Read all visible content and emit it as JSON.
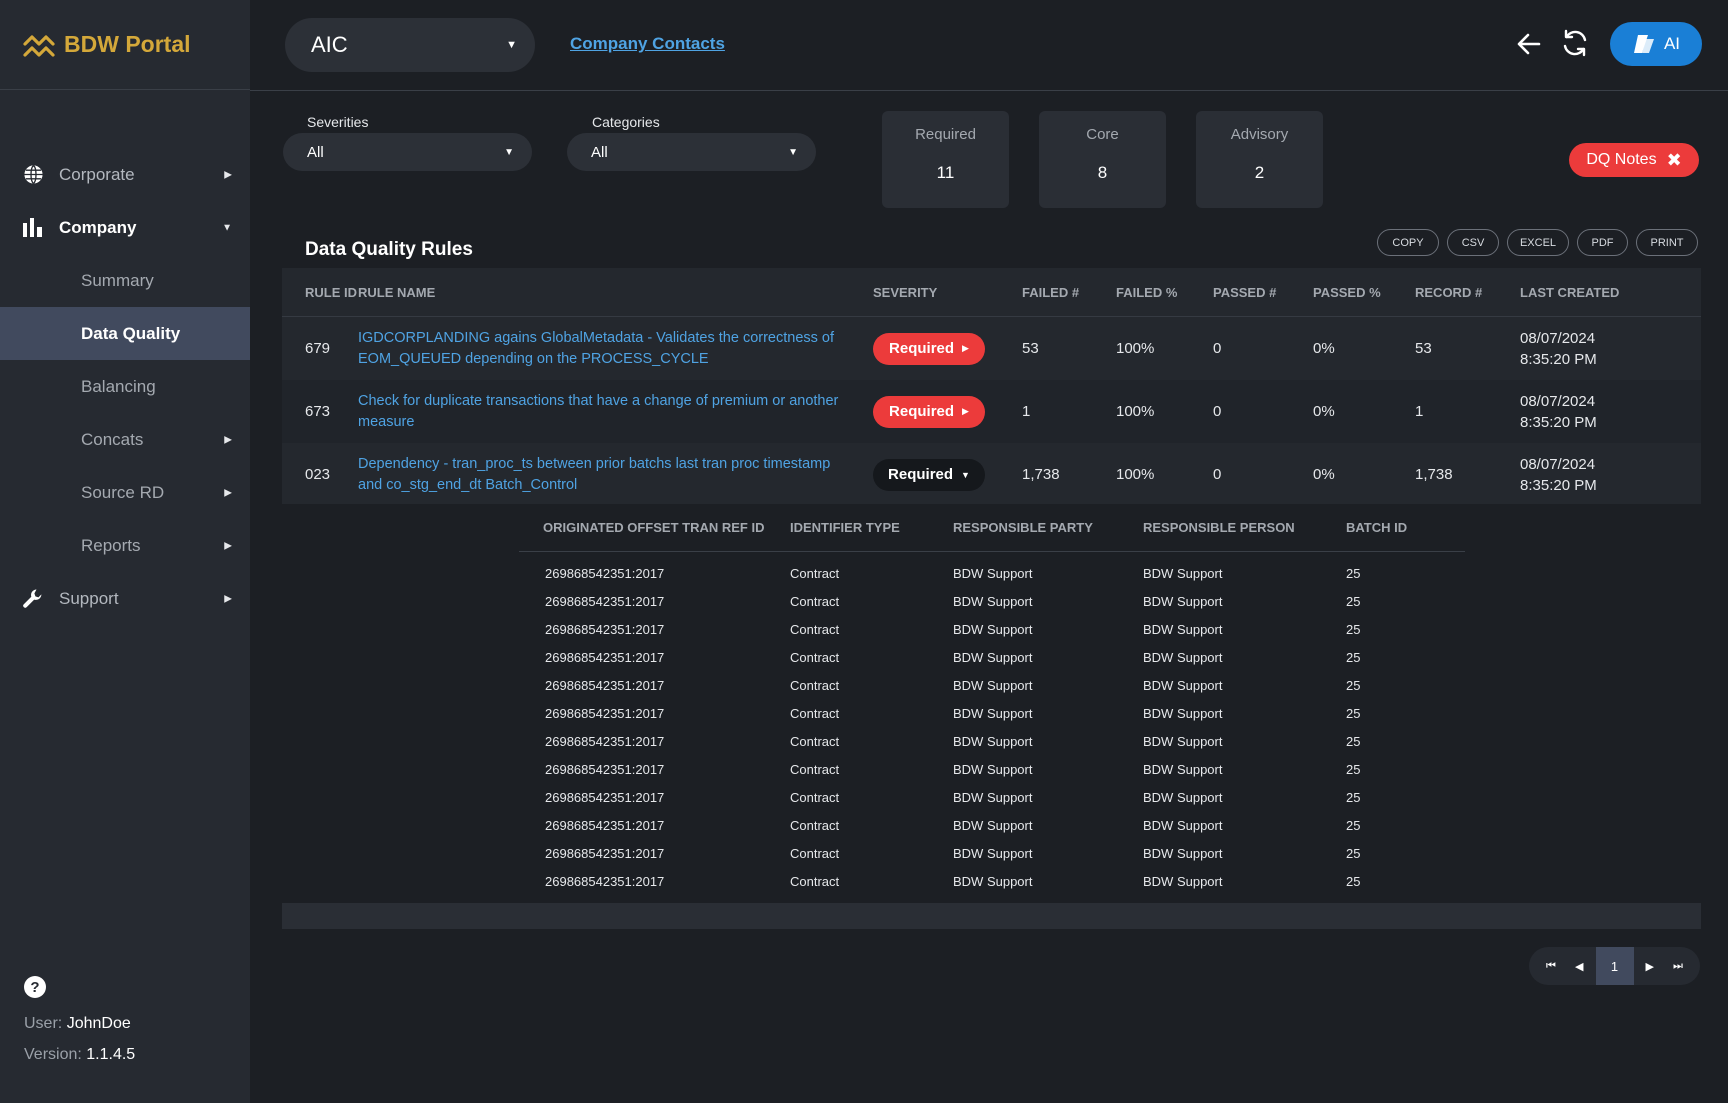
{
  "app": {
    "title": "BDW Portal"
  },
  "sidebar": {
    "items": [
      {
        "label": "Corporate"
      },
      {
        "label": "Company"
      },
      {
        "label": "Support"
      }
    ],
    "company_sub": [
      {
        "label": "Summary"
      },
      {
        "label": "Data Quality"
      },
      {
        "label": "Balancing"
      },
      {
        "label": "Concats"
      },
      {
        "label": "Source RD"
      },
      {
        "label": "Reports"
      }
    ],
    "footer": {
      "user_label": "User:",
      "user": "JohnDoe",
      "version_label": "Version:",
      "version": "1.1.4.5",
      "help_glyph": "?"
    }
  },
  "header": {
    "company_select": "AIC",
    "company_link": "Company Contacts",
    "ai_label": "AI"
  },
  "filters": {
    "severities_label": "Severities",
    "severities_value": "All",
    "categories_label": "Categories",
    "categories_value": "All"
  },
  "stats": [
    {
      "label": "Required",
      "value": "11"
    },
    {
      "label": "Core",
      "value": "8"
    },
    {
      "label": "Advisory",
      "value": "2"
    }
  ],
  "dq_notes": {
    "label": "DQ Notes"
  },
  "table": {
    "title": "Data Quality Rules",
    "exports": [
      "COPY",
      "CSV",
      "EXCEL",
      "PDF",
      "PRINT"
    ],
    "columns": [
      "RULE ID",
      "RULE NAME",
      "SEVERITY",
      "FAILED #",
      "FAILED %",
      "PASSED #",
      "PASSED %",
      "RECORD #",
      "LAST CREATED"
    ],
    "rows": [
      {
        "id": "679",
        "name": "IGDCORPLANDING agains GlobalMetadata - Validates the correctness of EOM_QUEUED depending on the PROCESS_CYCLE",
        "severity": "Required",
        "failed_n": "53",
        "failed_p": "100%",
        "passed_n": "0",
        "passed_p": "0%",
        "record_n": "53",
        "created_date": "08/07/2024",
        "created_time": "8:35:20 PM"
      },
      {
        "id": "673",
        "name": "Check for duplicate transactions that have a change of premium or another measure",
        "severity": "Required",
        "failed_n": "1",
        "failed_p": "100%",
        "passed_n": "0",
        "passed_p": "0%",
        "record_n": "1",
        "created_date": "08/07/2024",
        "created_time": "8:35:20 PM"
      },
      {
        "id": "023",
        "name": "Dependency - tran_proc_ts between prior batchs last tran proc timestamp and co_stg_end_dt Batch_Control",
        "severity": "Required",
        "failed_n": "1,738",
        "failed_p": "100%",
        "passed_n": "0",
        "passed_p": "0%",
        "record_n": "1,738",
        "created_date": "08/07/2024",
        "created_time": "8:35:20 PM"
      }
    ]
  },
  "detail": {
    "columns": [
      "ORIGINATED OFFSET TRAN REF ID",
      "IDENTIFIER TYPE",
      "RESPONSIBLE PARTY",
      "RESPONSIBLE PERSON",
      "BATCH ID"
    ],
    "rows": [
      [
        "269868542351:2017",
        "Contract",
        "BDW Support",
        "BDW Support",
        "25"
      ],
      [
        "269868542351:2017",
        "Contract",
        "BDW Support",
        "BDW Support",
        "25"
      ],
      [
        "269868542351:2017",
        "Contract",
        "BDW Support",
        "BDW Support",
        "25"
      ],
      [
        "269868542351:2017",
        "Contract",
        "BDW Support",
        "BDW Support",
        "25"
      ],
      [
        "269868542351:2017",
        "Contract",
        "BDW Support",
        "BDW Support",
        "25"
      ],
      [
        "269868542351:2017",
        "Contract",
        "BDW Support",
        "BDW Support",
        "25"
      ],
      [
        "269868542351:2017",
        "Contract",
        "BDW Support",
        "BDW Support",
        "25"
      ],
      [
        "269868542351:2017",
        "Contract",
        "BDW Support",
        "BDW Support",
        "25"
      ],
      [
        "269868542351:2017",
        "Contract",
        "BDW Support",
        "BDW Support",
        "25"
      ],
      [
        "269868542351:2017",
        "Contract",
        "BDW Support",
        "BDW Support",
        "25"
      ],
      [
        "269868542351:2017",
        "Contract",
        "BDW Support",
        "BDW Support",
        "25"
      ],
      [
        "269868542351:2017",
        "Contract",
        "BDW Support",
        "BDW Support",
        "25"
      ]
    ]
  },
  "pagination": {
    "current": "1"
  },
  "colors": {
    "accent": "#1a7fd6",
    "brand": "#d4a83a",
    "danger": "#ec3b3b",
    "link": "#4fa3e3"
  }
}
